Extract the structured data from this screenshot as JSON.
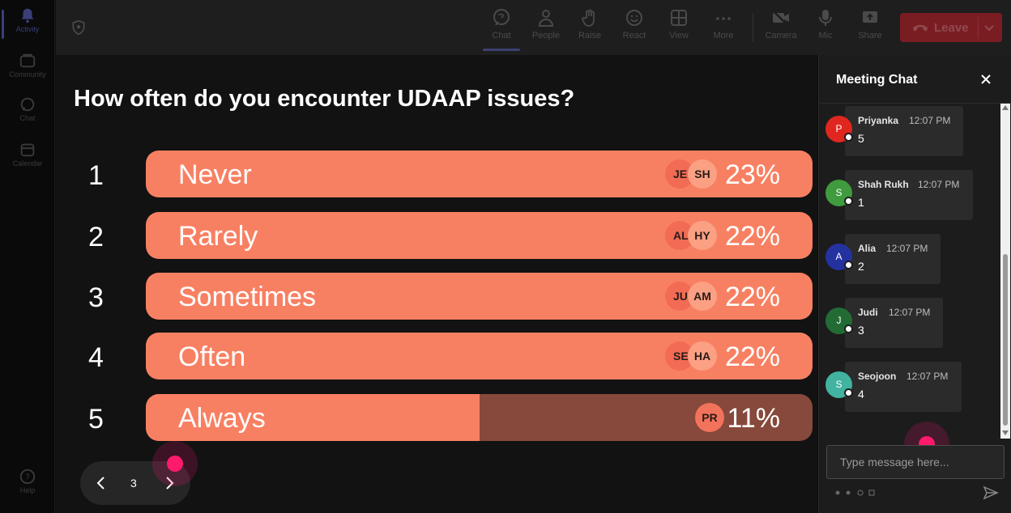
{
  "rail": {
    "items": [
      {
        "label": "Activity",
        "active": true
      },
      {
        "label": "Community",
        "active": false
      },
      {
        "label": "Chat",
        "active": false
      },
      {
        "label": "Calendar",
        "active": false
      }
    ],
    "help_label": "Help"
  },
  "toolbar": {
    "items": [
      {
        "label": "Chat",
        "icon": "chat-icon",
        "active": true
      },
      {
        "label": "People",
        "icon": "people-icon"
      },
      {
        "label": "Raise",
        "icon": "raise-hand-icon"
      },
      {
        "label": "React",
        "icon": "react-icon"
      },
      {
        "label": "View",
        "icon": "view-icon"
      },
      {
        "label": "More",
        "icon": "more-icon"
      },
      {
        "label": "Camera",
        "icon": "camera-off-icon"
      },
      {
        "label": "Mic",
        "icon": "mic-icon"
      },
      {
        "label": "Share",
        "icon": "share-icon"
      }
    ],
    "leave_label": "Leave",
    "leave_color": "#7a1d22"
  },
  "poll": {
    "question": "How often do you encounter UDAAP issues?",
    "accent_color": "#f88062",
    "options": [
      {
        "number": "1",
        "label": "Never",
        "percent": "23%",
        "avatars": [
          "JE",
          "SH"
        ],
        "highlighted": true
      },
      {
        "number": "2",
        "label": "Rarely",
        "percent": "22%",
        "avatars": [
          "AL",
          "HY"
        ],
        "highlighted": true
      },
      {
        "number": "3",
        "label": "Sometimes",
        "percent": "22%",
        "avatars": [
          "JU",
          "AM"
        ],
        "highlighted": true
      },
      {
        "number": "4",
        "label": "Often",
        "percent": "22%",
        "avatars": [
          "SE",
          "HA"
        ],
        "highlighted": true
      },
      {
        "number": "5",
        "label": "Always",
        "percent": "11%",
        "avatars": [
          "PR"
        ],
        "highlighted": false,
        "fill_fraction": 0.5
      }
    ],
    "page": "3"
  },
  "chat": {
    "title": "Meeting Chat",
    "messages": [
      {
        "initial": "P",
        "name": "Priyanka",
        "time": "12:07 PM",
        "text": "5",
        "color": "#e0271f"
      },
      {
        "initial": "S",
        "name": "Shah Rukh",
        "time": "12:07 PM",
        "text": "1",
        "color": "#3f9b3d"
      },
      {
        "initial": "A",
        "name": "Alia",
        "time": "12:07 PM",
        "text": "2",
        "color": "#2432a0"
      },
      {
        "initial": "J",
        "name": "Judi",
        "time": "12:07 PM",
        "text": "3",
        "color": "#236b35"
      },
      {
        "initial": "S",
        "name": "Seojoon",
        "time": "12:07 PM",
        "text": "4",
        "color": "#41b3a0"
      }
    ],
    "input_placeholder": "Type message here..."
  }
}
